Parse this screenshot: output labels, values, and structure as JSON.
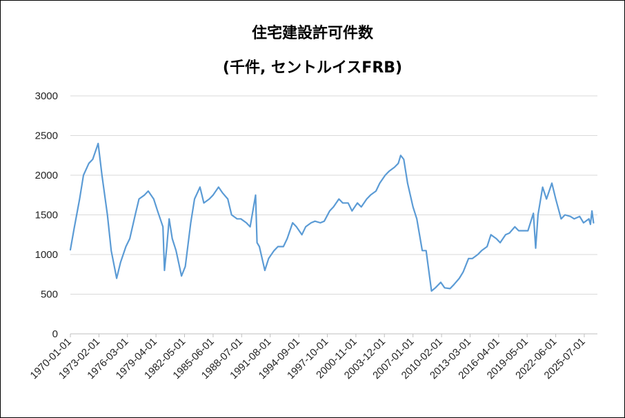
{
  "chart_data": {
    "type": "line",
    "title": "住宅建設許可件数",
    "subtitle": "(千件, セントルイスFRB)",
    "xlabel": "",
    "ylabel": "",
    "ylim": [
      0,
      3000
    ],
    "yticks": [
      0,
      500,
      1000,
      1500,
      2000,
      2500,
      3000
    ],
    "xlim": [
      "1970-01-01",
      "2026-12-01"
    ],
    "xticks": [
      "1970-01-01",
      "1973-02-01",
      "1976-03-01",
      "1979-04-01",
      "1982-05-01",
      "1985-06-01",
      "1988-07-01",
      "1991-08-01",
      "1994-09-01",
      "1997-10-01",
      "2000-11-01",
      "2003-12-01",
      "2007-01-01",
      "2010-02-01",
      "2013-03-01",
      "2016-04-01",
      "2019-05-01",
      "2022-06-01",
      "2025-07-01"
    ],
    "grid": true,
    "legend": "none",
    "series": [
      {
        "color": "#5b9bd5",
        "points": [
          [
            "1970-01-01",
            1060
          ],
          [
            "1970-06-01",
            1330
          ],
          [
            "1971-01-01",
            1700
          ],
          [
            "1971-06-01",
            2000
          ],
          [
            "1972-01-01",
            2150
          ],
          [
            "1972-06-01",
            2200
          ],
          [
            "1973-01-01",
            2400
          ],
          [
            "1973-06-01",
            2000
          ],
          [
            "1974-01-01",
            1500
          ],
          [
            "1974-06-01",
            1050
          ],
          [
            "1975-01-01",
            700
          ],
          [
            "1975-06-01",
            900
          ],
          [
            "1976-01-01",
            1100
          ],
          [
            "1976-06-01",
            1200
          ],
          [
            "1977-01-01",
            1500
          ],
          [
            "1977-06-01",
            1700
          ],
          [
            "1978-01-01",
            1750
          ],
          [
            "1978-06-01",
            1800
          ],
          [
            "1979-01-01",
            1700
          ],
          [
            "1979-06-01",
            1550
          ],
          [
            "1980-01-01",
            1350
          ],
          [
            "1980-03-01",
            800
          ],
          [
            "1980-06-01",
            1100
          ],
          [
            "1980-09-01",
            1450
          ],
          [
            "1981-01-01",
            1200
          ],
          [
            "1981-06-01",
            1050
          ],
          [
            "1982-01-01",
            730
          ],
          [
            "1982-06-01",
            850
          ],
          [
            "1983-01-01",
            1400
          ],
          [
            "1983-06-01",
            1700
          ],
          [
            "1984-01-01",
            1850
          ],
          [
            "1984-06-01",
            1650
          ],
          [
            "1985-01-01",
            1700
          ],
          [
            "1985-06-01",
            1750
          ],
          [
            "1986-01-01",
            1850
          ],
          [
            "1986-06-01",
            1780
          ],
          [
            "1987-01-01",
            1700
          ],
          [
            "1987-06-01",
            1500
          ],
          [
            "1988-01-01",
            1450
          ],
          [
            "1988-06-01",
            1450
          ],
          [
            "1989-01-01",
            1400
          ],
          [
            "1989-06-01",
            1350
          ],
          [
            "1990-01-01",
            1750
          ],
          [
            "1990-03-01",
            1150
          ],
          [
            "1990-06-01",
            1100
          ],
          [
            "1991-01-01",
            800
          ],
          [
            "1991-06-01",
            950
          ],
          [
            "1992-01-01",
            1050
          ],
          [
            "1992-06-01",
            1100
          ],
          [
            "1993-01-01",
            1100
          ],
          [
            "1993-06-01",
            1200
          ],
          [
            "1994-01-01",
            1400
          ],
          [
            "1994-06-01",
            1350
          ],
          [
            "1995-01-01",
            1250
          ],
          [
            "1995-06-01",
            1350
          ],
          [
            "1996-01-01",
            1400
          ],
          [
            "1996-06-01",
            1420
          ],
          [
            "1997-01-01",
            1400
          ],
          [
            "1997-06-01",
            1420
          ],
          [
            "1998-01-01",
            1550
          ],
          [
            "1998-06-01",
            1600
          ],
          [
            "1999-01-01",
            1700
          ],
          [
            "1999-06-01",
            1650
          ],
          [
            "2000-01-01",
            1650
          ],
          [
            "2000-06-01",
            1550
          ],
          [
            "2001-01-01",
            1650
          ],
          [
            "2001-06-01",
            1600
          ],
          [
            "2002-01-01",
            1700
          ],
          [
            "2002-06-01",
            1750
          ],
          [
            "2003-01-01",
            1800
          ],
          [
            "2003-06-01",
            1900
          ],
          [
            "2004-01-01",
            2000
          ],
          [
            "2004-06-01",
            2050
          ],
          [
            "2005-01-01",
            2100
          ],
          [
            "2005-06-01",
            2150
          ],
          [
            "2005-09-01",
            2250
          ],
          [
            "2006-01-01",
            2200
          ],
          [
            "2006-06-01",
            1900
          ],
          [
            "2007-01-01",
            1600
          ],
          [
            "2007-06-01",
            1450
          ],
          [
            "2008-01-01",
            1050
          ],
          [
            "2008-06-01",
            1050
          ],
          [
            "2009-01-01",
            540
          ],
          [
            "2009-06-01",
            580
          ],
          [
            "2010-01-01",
            650
          ],
          [
            "2010-06-01",
            580
          ],
          [
            "2011-01-01",
            570
          ],
          [
            "2011-06-01",
            620
          ],
          [
            "2012-01-01",
            700
          ],
          [
            "2012-06-01",
            780
          ],
          [
            "2013-01-01",
            950
          ],
          [
            "2013-06-01",
            950
          ],
          [
            "2014-01-01",
            1000
          ],
          [
            "2014-06-01",
            1050
          ],
          [
            "2015-01-01",
            1100
          ],
          [
            "2015-06-01",
            1250
          ],
          [
            "2016-01-01",
            1200
          ],
          [
            "2016-06-01",
            1150
          ],
          [
            "2017-01-01",
            1250
          ],
          [
            "2017-06-01",
            1270
          ],
          [
            "2018-01-01",
            1350
          ],
          [
            "2018-06-01",
            1300
          ],
          [
            "2019-01-01",
            1300
          ],
          [
            "2019-06-01",
            1300
          ],
          [
            "2020-01-01",
            1520
          ],
          [
            "2020-04-01",
            1080
          ],
          [
            "2020-07-01",
            1500
          ],
          [
            "2021-01-01",
            1850
          ],
          [
            "2021-06-01",
            1700
          ],
          [
            "2022-01-01",
            1900
          ],
          [
            "2022-06-01",
            1700
          ],
          [
            "2023-01-01",
            1450
          ],
          [
            "2023-06-01",
            1500
          ],
          [
            "2024-01-01",
            1480
          ],
          [
            "2024-06-01",
            1450
          ],
          [
            "2025-01-01",
            1480
          ],
          [
            "2025-06-01",
            1400
          ],
          [
            "2026-01-01",
            1450
          ],
          [
            "2026-03-01",
            1380
          ],
          [
            "2026-05-01",
            1550
          ],
          [
            "2026-07-01",
            1400
          ]
        ]
      }
    ]
  }
}
